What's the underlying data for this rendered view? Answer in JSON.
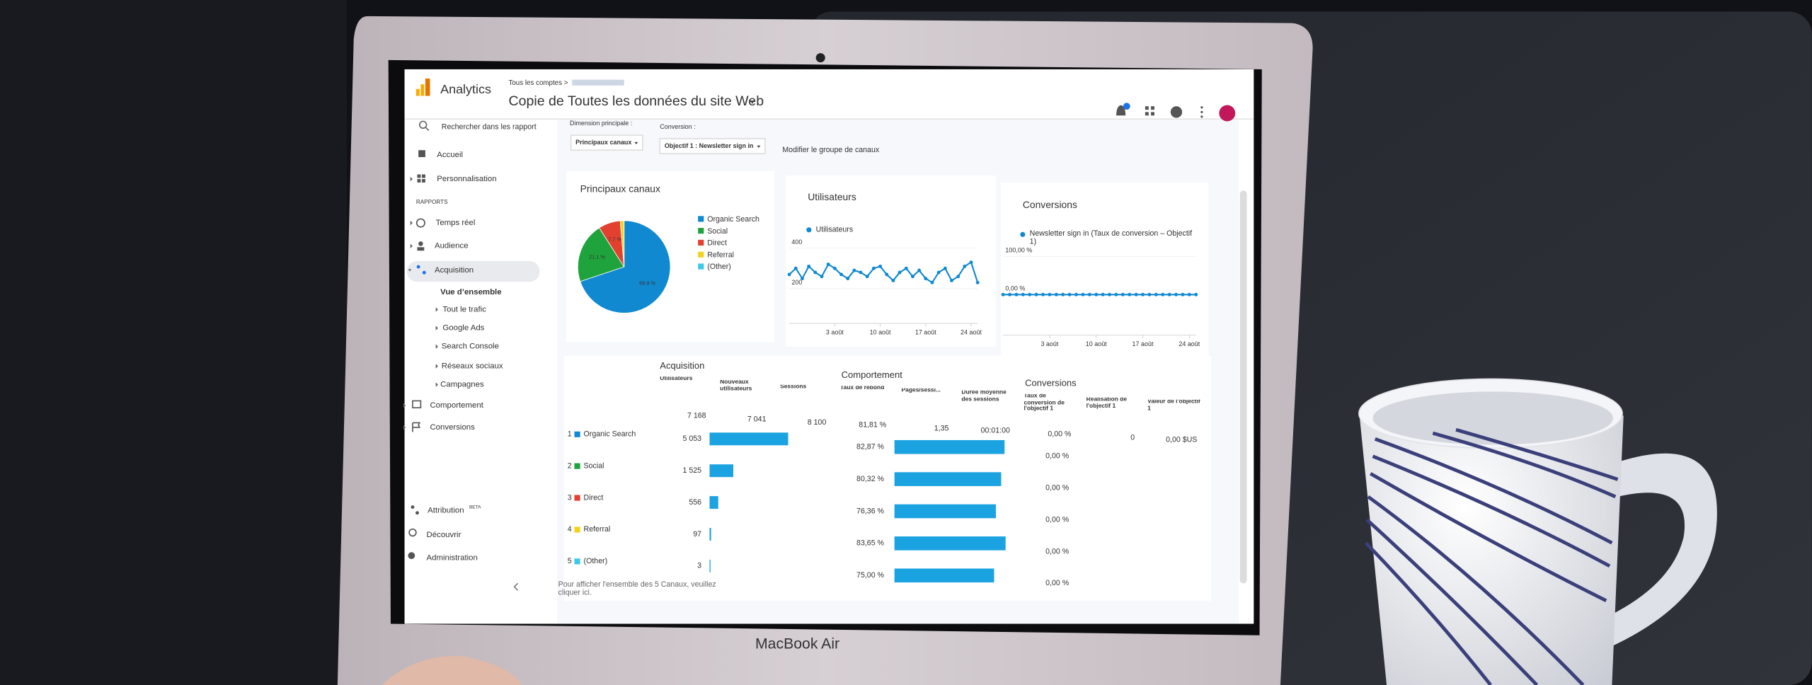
{
  "header": {
    "product": "Analytics",
    "breadcrumb": "Tous les comptes >",
    "title": "Copie de Toutes les données du site Web"
  },
  "sidebar": {
    "search": "Rechercher dans les rapport",
    "section": "RAPPORTS",
    "badge": "BETA",
    "items": [
      "Accueil",
      "Personnalisation",
      "Temps réel",
      "Audience",
      "Acquisition",
      "Vue d’ensemble",
      "Tout le trafic",
      "Google Ads",
      "Search Console",
      "Réseaux sociaux",
      "Campagnes",
      "Comportement",
      "Conversions",
      "Attribution",
      "Découvrir",
      "Administration"
    ]
  },
  "filters": {
    "dimension_label": "Dimension principale :",
    "dimension": "Principaux canaux",
    "conversion_label": "Conversion :",
    "conversion": "Objectif 1 : Newsletter sign in",
    "edit": "Modifier le groupe de canaux"
  },
  "chart_data": [
    {
      "type": "pie",
      "title": "Principaux canaux",
      "categories": [
        "Organic Search",
        "Social",
        "Direct",
        "Referral",
        "(Other)"
      ],
      "values": [
        69.9,
        21.1,
        7.7,
        1.3,
        0.04
      ],
      "value_labels": [
        "69.9 %",
        "21.1 %",
        "7.7 %",
        null,
        null
      ],
      "colors": [
        "#1189d0",
        "#1fa33c",
        "#e2412f",
        "#f2d21c",
        "#3dc8e8"
      ]
    },
    {
      "type": "line",
      "title": "Utilisateurs",
      "x": [
        0,
        1,
        2,
        3,
        4,
        5,
        6,
        7,
        8,
        9,
        10,
        11,
        12,
        13,
        14,
        15,
        16,
        17,
        18,
        19,
        20,
        21,
        22,
        23,
        24,
        25,
        26,
        27,
        28,
        29
      ],
      "series": [
        {
          "name": "Utilisateurs",
          "color": "#1189d0",
          "values": [
            270,
            300,
            250,
            310,
            280,
            260,
            320,
            300,
            270,
            250,
            290,
            280,
            260,
            300,
            310,
            270,
            240,
            280,
            300,
            260,
            290,
            250,
            230,
            280,
            300,
            240,
            260,
            310,
            330,
            230
          ]
        }
      ],
      "xlim": [
        0,
        29
      ],
      "xticks": [
        {
          "value": 7,
          "label": "3 août"
        },
        {
          "value": 14,
          "label": "10 août"
        },
        {
          "value": 21,
          "label": "17 août"
        },
        {
          "value": 28,
          "label": "24 août"
        }
      ],
      "ylim": [
        0,
        450
      ],
      "yticks": [
        200,
        400
      ]
    },
    {
      "type": "line",
      "title": "Conversions",
      "x": [
        0,
        1,
        2,
        3,
        4,
        5,
        6,
        7,
        8,
        9,
        10,
        11,
        12,
        13,
        14,
        15,
        16,
        17,
        18,
        19,
        20,
        21,
        22,
        23,
        24,
        25,
        26,
        27,
        28,
        29
      ],
      "series": [
        {
          "name": "Newsletter sign in (Taux de conversion – Objectif 1)",
          "color": "#1189d0",
          "values": [
            0,
            0,
            0,
            0,
            0,
            0,
            0,
            0,
            0,
            0,
            0,
            0,
            0,
            0,
            0,
            0,
            0,
            0,
            0,
            0,
            0,
            0,
            0,
            0,
            0,
            0,
            0,
            0,
            0,
            0
          ]
        }
      ],
      "xlim": [
        0,
        29
      ],
      "xticks": [
        {
          "value": 7,
          "label": "3 août"
        },
        {
          "value": 14,
          "label": "10 août"
        },
        {
          "value": 21,
          "label": "17 août"
        },
        {
          "value": 28,
          "label": "24 août"
        }
      ],
      "ylim": [
        0,
        100
      ],
      "yticks": [
        {
          "value": 0,
          "label": "0,00 %"
        },
        {
          "value": 100,
          "label": "100,00 %"
        }
      ]
    }
  ],
  "table": {
    "groups": [
      "Acquisition",
      "Comportement",
      "Conversions"
    ],
    "columns": [
      "Utilisateurs",
      "Nouveaux utilisateurs",
      "Sessions",
      "Taux de rebond",
      "Pages/sessi...",
      "Durée moyenne des sessions",
      "Taux de conversion de l'objectif 1",
      "Réalisation de l'objectif 1",
      "Valeur de l'objectif 1"
    ],
    "totals": [
      "7 168",
      "7 041",
      "8 100",
      "81,81 %",
      "1,35",
      "00:01:00",
      "0,00 %",
      "0",
      "0,00 $US"
    ],
    "rows": [
      {
        "rank": 1,
        "name": "Organic Search",
        "color": "#1189d0",
        "users": 5053,
        "users_label": "5 053",
        "bounce": 82.87,
        "bounce_label": "82,87 %",
        "conversion": "0,00 %"
      },
      {
        "rank": 2,
        "name": "Social",
        "color": "#1fa33c",
        "users": 1525,
        "users_label": "1 525",
        "bounce": 80.32,
        "bounce_label": "80,32 %",
        "conversion": "0,00 %"
      },
      {
        "rank": 3,
        "name": "Direct",
        "color": "#e2412f",
        "users": 556,
        "users_label": "556",
        "bounce": 76.36,
        "bounce_label": "76,36 %",
        "conversion": "0,00 %"
      },
      {
        "rank": 4,
        "name": "Referral",
        "color": "#f2d21c",
        "users": 97,
        "users_label": "97",
        "bounce": 83.65,
        "bounce_label": "83,65 %",
        "conversion": "0,00 %"
      },
      {
        "rank": 5,
        "name": "(Other)",
        "color": "#3dc8e8",
        "users": 3,
        "users_label": "3",
        "bounce": 75.0,
        "bounce_label": "75,00 %",
        "conversion": "0,00 %"
      }
    ]
  },
  "footer": "Pour afficher l'ensemble des 5 Canaux, veuillez cliquer ici.",
  "device": "MacBook Air"
}
